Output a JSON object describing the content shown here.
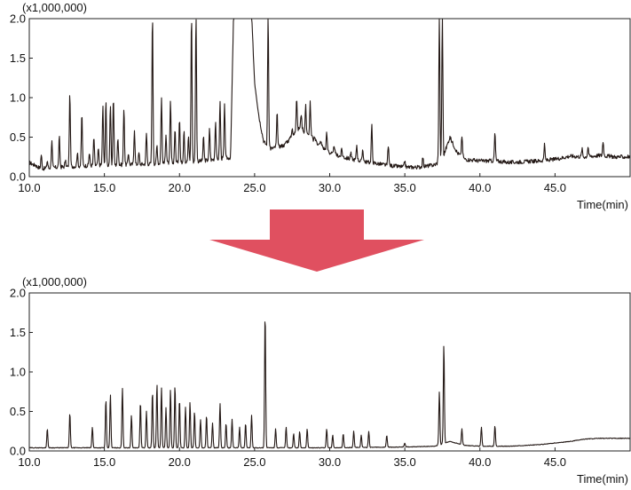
{
  "colors": {
    "trace": "#231815",
    "frame": "#222222",
    "arrow": "#e05060"
  },
  "arrow": {
    "direction": "down"
  },
  "chart_data": [
    {
      "type": "line",
      "id": "before",
      "multiplier_label": "(x1,000,000)",
      "xlabel": "Time(min)",
      "ylabel": "",
      "xlim": [
        10.0,
        50.0
      ],
      "ylim": [
        0.0,
        2.0
      ],
      "xticks": [
        10.0,
        15.0,
        20.0,
        25.0,
        30.0,
        35.0,
        40.0,
        45.0
      ],
      "xtick_labels": [
        "10.0",
        "15.0",
        "20.0",
        "25.0",
        "30.0",
        "35.0",
        "40.0",
        "45.0"
      ],
      "yticks": [
        0.0,
        0.5,
        1.0,
        1.5,
        2.0
      ],
      "ytick_labels": [
        "0.0",
        "0.5",
        "1.0",
        "1.5",
        "2.0"
      ],
      "baseline": [
        [
          10.0,
          0.18
        ],
        [
          10.8,
          0.1
        ],
        [
          12.0,
          0.12
        ],
        [
          14.0,
          0.14
        ],
        [
          16.0,
          0.15
        ],
        [
          18.0,
          0.16
        ],
        [
          20.0,
          0.18
        ],
        [
          21.5,
          0.2
        ],
        [
          23.4,
          0.24
        ],
        [
          23.6,
          2.05
        ],
        [
          24.8,
          2.05
        ],
        [
          25.0,
          1.2
        ],
        [
          25.3,
          0.75
        ],
        [
          25.6,
          0.45
        ],
        [
          26.0,
          0.35
        ],
        [
          27.0,
          0.4
        ],
        [
          28.0,
          0.62
        ],
        [
          29.0,
          0.45
        ],
        [
          30.0,
          0.3
        ],
        [
          31.0,
          0.24
        ],
        [
          32.0,
          0.2
        ],
        [
          33.0,
          0.17
        ],
        [
          34.0,
          0.14
        ],
        [
          35.0,
          0.12
        ],
        [
          36.0,
          0.12
        ],
        [
          37.0,
          0.15
        ],
        [
          37.5,
          0.22
        ],
        [
          38.0,
          0.5
        ],
        [
          38.5,
          0.3
        ],
        [
          39.0,
          0.22
        ],
        [
          40.0,
          0.2
        ],
        [
          41.0,
          0.2
        ],
        [
          42.0,
          0.18
        ],
        [
          43.0,
          0.19
        ],
        [
          44.0,
          0.2
        ],
        [
          45.0,
          0.22
        ],
        [
          46.0,
          0.26
        ],
        [
          47.0,
          0.25
        ],
        [
          48.0,
          0.27
        ],
        [
          49.0,
          0.25
        ],
        [
          50.0,
          0.25
        ]
      ],
      "peaks": [
        [
          10.3,
          0.12
        ],
        [
          10.8,
          0.28
        ],
        [
          11.2,
          0.2
        ],
        [
          11.5,
          0.45
        ],
        [
          12.0,
          0.5
        ],
        [
          12.4,
          0.2
        ],
        [
          12.7,
          1.05
        ],
        [
          13.2,
          0.3
        ],
        [
          13.5,
          0.8
        ],
        [
          14.0,
          0.3
        ],
        [
          14.3,
          0.5
        ],
        [
          14.6,
          0.35
        ],
        [
          14.9,
          0.9
        ],
        [
          15.1,
          0.95
        ],
        [
          15.4,
          0.9
        ],
        [
          15.6,
          1.0
        ],
        [
          15.9,
          0.5
        ],
        [
          16.3,
          0.88
        ],
        [
          16.6,
          0.3
        ],
        [
          17.0,
          0.6
        ],
        [
          17.3,
          0.3
        ],
        [
          17.8,
          0.55
        ],
        [
          18.2,
          2.05
        ],
        [
          18.5,
          0.4
        ],
        [
          18.8,
          1.0
        ],
        [
          19.1,
          0.55
        ],
        [
          19.4,
          0.95
        ],
        [
          19.7,
          0.6
        ],
        [
          20.0,
          0.75
        ],
        [
          20.3,
          0.6
        ],
        [
          20.6,
          0.5
        ],
        [
          20.8,
          2.05
        ],
        [
          21.1,
          2.05
        ],
        [
          21.6,
          0.5
        ],
        [
          22.0,
          0.6
        ],
        [
          22.4,
          0.7
        ],
        [
          22.7,
          0.95
        ],
        [
          23.0,
          0.9
        ],
        [
          25.9,
          2.05
        ],
        [
          26.5,
          0.8
        ],
        [
          27.2,
          0.45
        ],
        [
          27.5,
          0.6
        ],
        [
          27.8,
          1.0
        ],
        [
          28.1,
          0.8
        ],
        [
          28.4,
          0.9
        ],
        [
          28.7,
          0.95
        ],
        [
          29.0,
          0.5
        ],
        [
          29.4,
          0.45
        ],
        [
          29.8,
          0.55
        ],
        [
          30.3,
          0.4
        ],
        [
          30.8,
          0.35
        ],
        [
          31.4,
          0.3
        ],
        [
          31.8,
          0.4
        ],
        [
          32.2,
          0.35
        ],
        [
          32.8,
          0.65
        ],
        [
          33.9,
          0.4
        ],
        [
          35.0,
          0.2
        ],
        [
          36.2,
          0.25
        ],
        [
          37.3,
          2.05
        ],
        [
          37.5,
          2.05
        ],
        [
          38.8,
          0.52
        ],
        [
          41.0,
          0.55
        ],
        [
          44.3,
          0.4
        ],
        [
          46.8,
          0.35
        ],
        [
          47.2,
          0.38
        ],
        [
          48.2,
          0.45
        ]
      ]
    },
    {
      "type": "line",
      "id": "after",
      "multiplier_label": "(x1,000,000)",
      "xlabel": "Time(min)",
      "ylabel": "",
      "xlim": [
        10.0,
        50.0
      ],
      "ylim": [
        0.0,
        2.0
      ],
      "xticks": [
        10.0,
        15.0,
        20.0,
        25.0,
        30.0,
        35.0,
        40.0,
        45.0
      ],
      "xtick_labels": [
        "10.0",
        "15.0",
        "20.0",
        "25.0",
        "30.0",
        "35.0",
        "40.0",
        "45.0"
      ],
      "yticks": [
        0.0,
        0.5,
        1.0,
        1.5,
        2.0
      ],
      "ytick_labels": [
        "0.0",
        "0.5",
        "1.0",
        "1.5",
        "2.0"
      ],
      "baseline": [
        [
          10.0,
          0.04
        ],
        [
          12.0,
          0.04
        ],
        [
          16.0,
          0.04
        ],
        [
          20.0,
          0.04
        ],
        [
          25.0,
          0.04
        ],
        [
          30.0,
          0.04
        ],
        [
          35.0,
          0.05
        ],
        [
          37.0,
          0.06
        ],
        [
          38.0,
          0.12
        ],
        [
          39.0,
          0.07
        ],
        [
          40.0,
          0.06
        ],
        [
          42.0,
          0.06
        ],
        [
          44.0,
          0.08
        ],
        [
          46.0,
          0.12
        ],
        [
          47.0,
          0.15
        ],
        [
          48.0,
          0.16
        ],
        [
          49.0,
          0.16
        ],
        [
          50.0,
          0.16
        ]
      ],
      "peaks": [
        [
          11.2,
          0.28
        ],
        [
          12.7,
          0.48
        ],
        [
          14.2,
          0.3
        ],
        [
          15.1,
          0.65
        ],
        [
          15.4,
          0.72
        ],
        [
          16.2,
          0.8
        ],
        [
          16.8,
          0.45
        ],
        [
          17.4,
          0.62
        ],
        [
          17.8,
          0.5
        ],
        [
          18.2,
          0.75
        ],
        [
          18.5,
          0.85
        ],
        [
          18.8,
          0.8
        ],
        [
          19.1,
          0.55
        ],
        [
          19.4,
          0.78
        ],
        [
          19.7,
          0.83
        ],
        [
          20.0,
          0.65
        ],
        [
          20.4,
          0.55
        ],
        [
          20.7,
          0.62
        ],
        [
          21.0,
          0.5
        ],
        [
          21.4,
          0.4
        ],
        [
          21.8,
          0.45
        ],
        [
          22.2,
          0.35
        ],
        [
          22.7,
          0.6
        ],
        [
          23.1,
          0.35
        ],
        [
          23.5,
          0.4
        ],
        [
          24.0,
          0.3
        ],
        [
          24.4,
          0.35
        ],
        [
          24.8,
          0.45
        ],
        [
          25.7,
          1.75
        ],
        [
          26.4,
          0.28
        ],
        [
          27.1,
          0.3
        ],
        [
          27.6,
          0.22
        ],
        [
          28.0,
          0.25
        ],
        [
          28.5,
          0.28
        ],
        [
          29.8,
          0.28
        ],
        [
          30.2,
          0.2
        ],
        [
          30.9,
          0.22
        ],
        [
          31.6,
          0.25
        ],
        [
          32.1,
          0.2
        ],
        [
          32.6,
          0.25
        ],
        [
          33.8,
          0.2
        ],
        [
          35.0,
          0.1
        ],
        [
          37.3,
          0.75
        ],
        [
          37.6,
          1.35
        ],
        [
          38.8,
          0.28
        ],
        [
          40.1,
          0.3
        ],
        [
          41.0,
          0.32
        ]
      ]
    }
  ]
}
